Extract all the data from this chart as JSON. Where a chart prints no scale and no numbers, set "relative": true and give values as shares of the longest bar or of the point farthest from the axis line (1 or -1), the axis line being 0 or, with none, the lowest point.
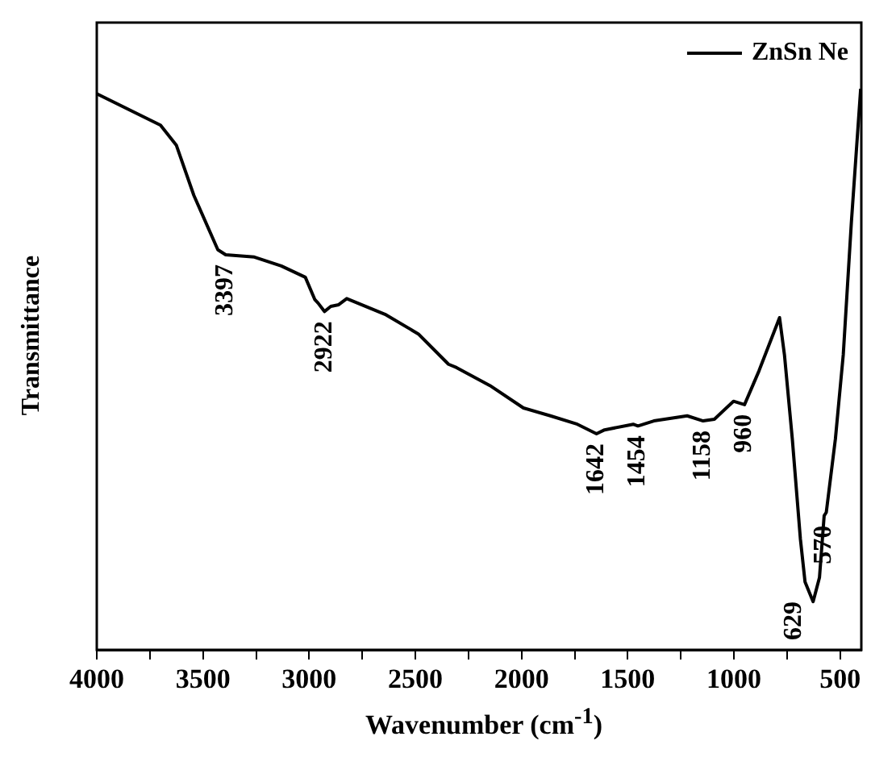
{
  "chart_data": {
    "type": "line",
    "relative": true,
    "xlabel": "Wavenumber (cm$^{-1}$)",
    "ylabel": "Transmittance",
    "xlim": [
      4000,
      400
    ],
    "xticks": [
      4000,
      {
        "value": 3750,
        "label": null
      },
      3500,
      {
        "value": 3250,
        "label": null
      },
      3000,
      {
        "value": 2750,
        "label": null
      },
      2500,
      {
        "value": 2250,
        "label": null
      },
      2000,
      {
        "value": 1750,
        "label": null
      },
      1500,
      {
        "value": 1250,
        "label": null
      },
      1000,
      {
        "value": 750,
        "label": null
      },
      500
    ],
    "tick_labels": "x",
    "legend": "top right",
    "grid": false,
    "marker": "none",
    "line_style": "solid",
    "series": [
      {
        "name": "ZnSn Ne",
        "color": "#000000",
        "x": [
          4000,
          3700,
          3625,
          3543,
          3430,
          3393,
          3258,
          3131,
          3018,
          2973,
          2958,
          2928,
          2898,
          2861,
          2823,
          2643,
          2486,
          2344,
          2306,
          2149,
          1991,
          1864,
          1737,
          1647,
          1609,
          1474,
          1452,
          1377,
          1220,
          1145,
          1092,
          1002,
          950,
          882,
          785,
          762,
          725,
          687,
          665,
          627,
          597,
          575,
          565,
          522,
          485,
          447,
          403
        ],
        "values": [
          0.991,
          0.935,
          0.899,
          0.81,
          0.713,
          0.704,
          0.7,
          0.684,
          0.664,
          0.624,
          0.618,
          0.603,
          0.612,
          0.615,
          0.626,
          0.598,
          0.563,
          0.509,
          0.503,
          0.471,
          0.431,
          0.417,
          0.402,
          0.385,
          0.392,
          0.402,
          0.399,
          0.408,
          0.417,
          0.408,
          0.411,
          0.443,
          0.437,
          0.497,
          0.592,
          0.526,
          0.376,
          0.198,
          0.121,
          0.086,
          0.129,
          0.239,
          0.245,
          0.376,
          0.526,
          0.761,
          1
        ]
      }
    ],
    "annotations": [
      {
        "text": "3397",
        "x": 3393,
        "y": 0.704
      },
      {
        "text": "2922",
        "x": 2928,
        "y": 0.603
      },
      {
        "text": "1642",
        "x": 1647,
        "y": 0.385
      },
      {
        "text": "1454",
        "x": 1452,
        "y": 0.399
      },
      {
        "text": "1158",
        "x": 1145,
        "y": 0.408
      },
      {
        "text": "960",
        "x": 950,
        "y": 0.437
      },
      {
        "text": "629",
        "x": 627,
        "y": 0.086
      },
      {
        "text": "570",
        "x": 575,
        "y": 0.239
      }
    ]
  }
}
